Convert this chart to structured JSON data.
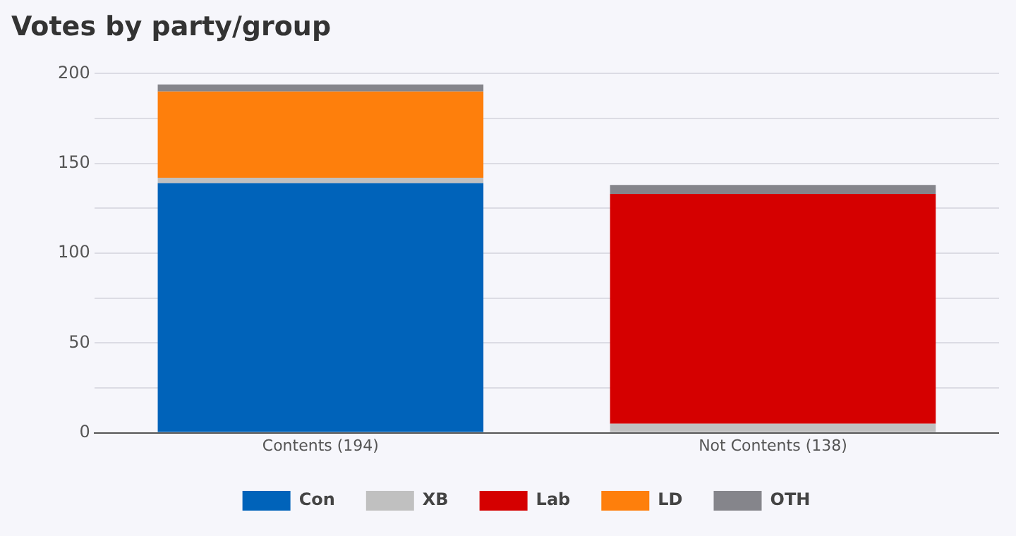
{
  "chart_data": {
    "type": "bar",
    "title": "Votes by party/group",
    "categories": [
      "Contents (194)",
      "Not Contents (138)"
    ],
    "stacked": true,
    "series": [
      {
        "name": "Con",
        "color": "#0063ba",
        "values": [
          139,
          0
        ]
      },
      {
        "name": "XB",
        "color": "#c0c0c0",
        "values": [
          3,
          5
        ]
      },
      {
        "name": "Lab",
        "color": "#d50000",
        "values": [
          0,
          128
        ]
      },
      {
        "name": "LD",
        "color": "#fe7f0c",
        "values": [
          48,
          0
        ]
      },
      {
        "name": "OTH",
        "color": "#85858b",
        "values": [
          4,
          5
        ]
      }
    ],
    "ylim": [
      0,
      200
    ],
    "yticks": [
      0,
      {
        "value": 25,
        "label": null
      },
      50,
      {
        "value": 75,
        "label": null
      },
      100,
      {
        "value": 125,
        "label": null
      },
      150,
      {
        "value": 175,
        "label": null
      },
      200
    ],
    "grid": "y",
    "legend": "bottom"
  }
}
